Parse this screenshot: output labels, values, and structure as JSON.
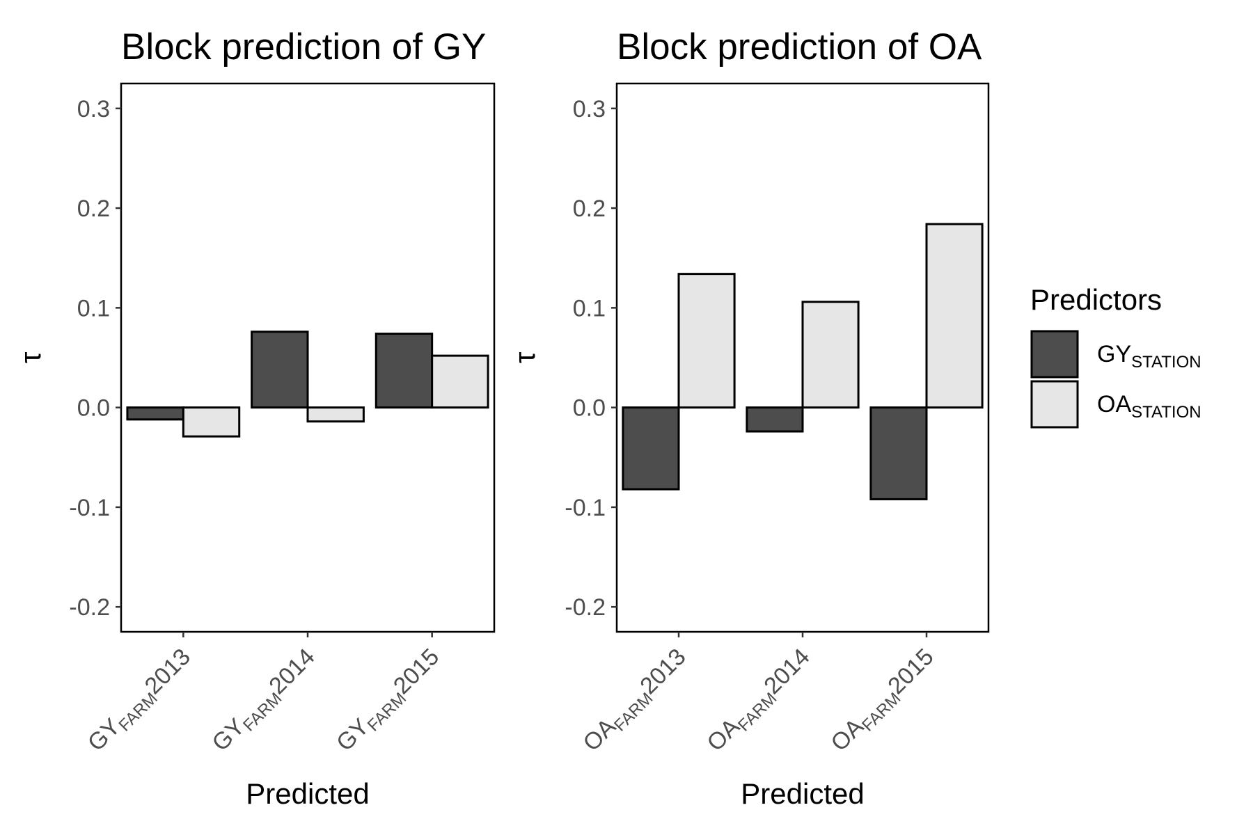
{
  "chart_data": [
    {
      "type": "bar",
      "title": "Block prediction of GY",
      "xlabel": "Predicted",
      "ylabel": "τ",
      "ylim": [
        -0.225,
        0.325
      ],
      "yticks": [
        "-0.2",
        "-0.1",
        "0.0",
        "0.1",
        "0.2",
        "0.3"
      ],
      "ytick_values": [
        -0.2,
        -0.1,
        0.0,
        0.1,
        0.2,
        0.3
      ],
      "grid": false,
      "categories": [
        {
          "main": "GY",
          "sub": "FARM",
          "year": "2013"
        },
        {
          "main": "GY",
          "sub": "FARM",
          "year": "2014"
        },
        {
          "main": "GY",
          "sub": "FARM",
          "year": "2015"
        }
      ],
      "series": [
        {
          "name": "GY_STATION",
          "values": [
            -0.012,
            0.076,
            0.074
          ]
        },
        {
          "name": "OA_STATION",
          "values": [
            -0.029,
            -0.014,
            0.052
          ]
        }
      ]
    },
    {
      "type": "bar",
      "title": "Block prediction of OA",
      "xlabel": "Predicted",
      "ylabel": "τ",
      "ylim": [
        -0.225,
        0.325
      ],
      "yticks": [
        "-0.2",
        "-0.1",
        "0.0",
        "0.1",
        "0.2",
        "0.3"
      ],
      "ytick_values": [
        -0.2,
        -0.1,
        0.0,
        0.1,
        0.2,
        0.3
      ],
      "grid": false,
      "categories": [
        {
          "main": "OA",
          "sub": "FARM",
          "year": "2013"
        },
        {
          "main": "OA",
          "sub": "FARM",
          "year": "2014"
        },
        {
          "main": "OA",
          "sub": "FARM",
          "year": "2015"
        }
      ],
      "series": [
        {
          "name": "GY_STATION",
          "values": [
            -0.082,
            -0.024,
            -0.092
          ]
        },
        {
          "name": "OA_STATION",
          "values": [
            0.134,
            0.106,
            0.184
          ]
        }
      ]
    }
  ],
  "legend": {
    "title": "Predictors",
    "placement": "right",
    "items": [
      {
        "main": "GY",
        "sub": "STATION",
        "color": "#4d4d4d"
      },
      {
        "main": "OA",
        "sub": "STATION",
        "color": "#e6e6e6"
      }
    ]
  },
  "colors": {
    "series": [
      "#4d4d4d",
      "#e6e6e6"
    ],
    "stroke": "#000000",
    "tick_text": "#4d4d4d"
  }
}
